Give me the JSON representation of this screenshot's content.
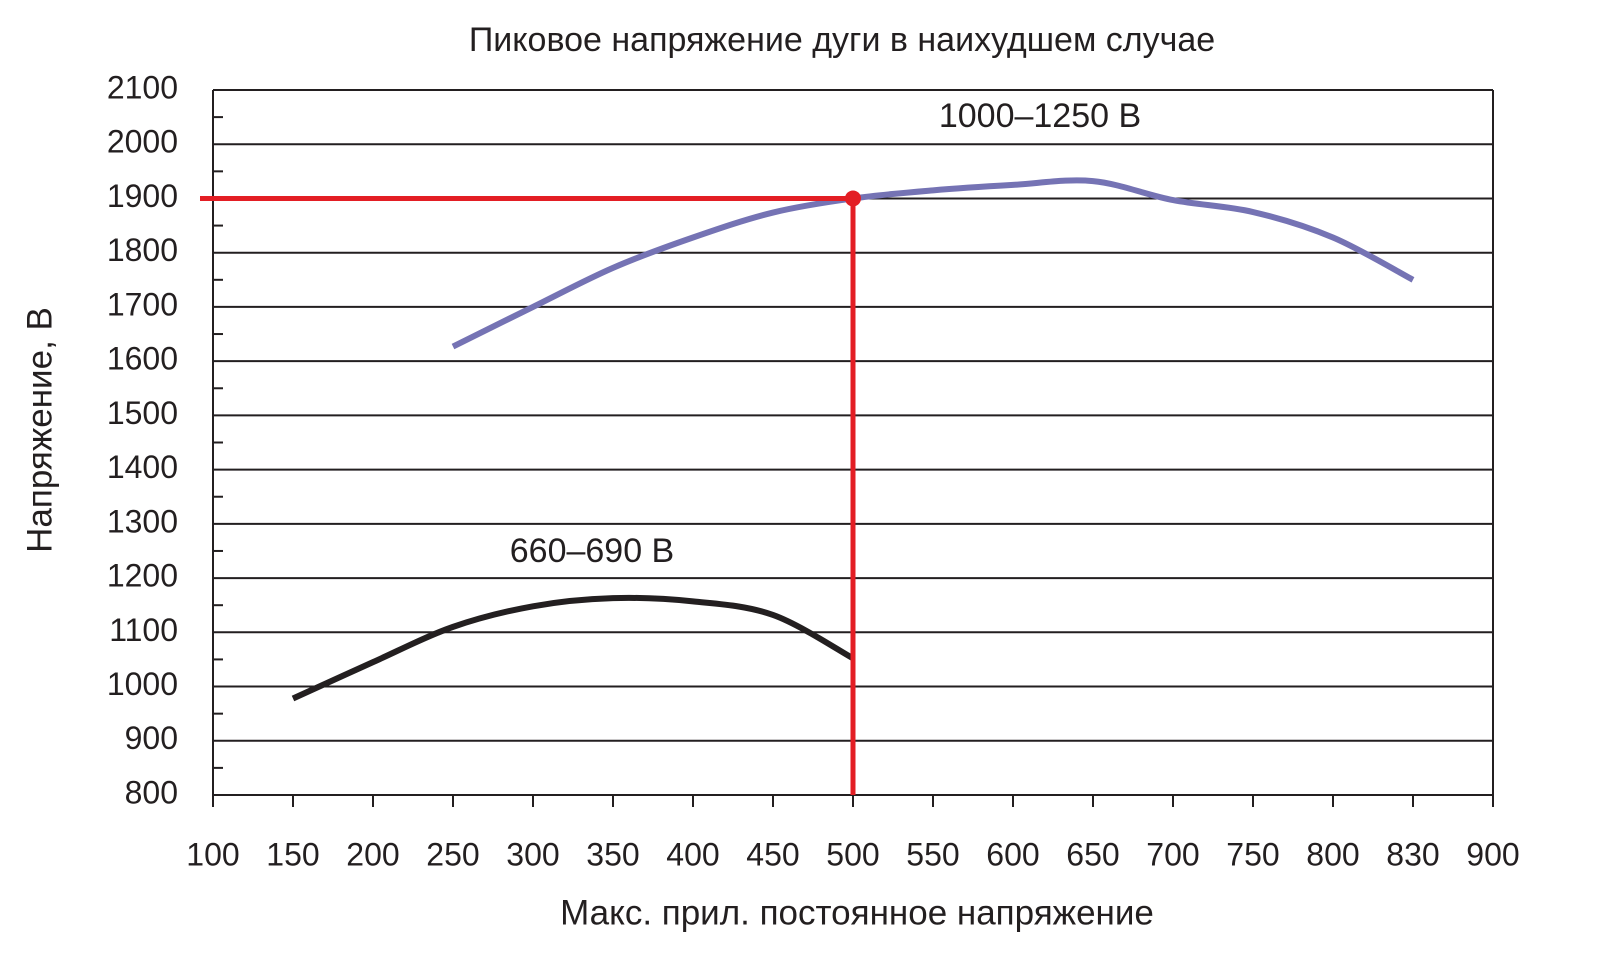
{
  "chart_data": {
    "type": "line",
    "title": "Пиковое напряжение дуги в наихудшем случае",
    "x_label": "Макс. прил. постоянное напряжение",
    "y_label": "Напряжение, В",
    "categories": [
      "100",
      "150",
      "200",
      "250",
      "300",
      "350",
      "400",
      "450",
      "500",
      "550",
      "600",
      "650",
      "700",
      "750",
      "800",
      "830",
      "900"
    ],
    "series": [
      {
        "name": "660–690 В",
        "color": "#231f20",
        "values": [
          null,
          978,
          1045,
          1110,
          1148,
          1163,
          1157,
          1132,
          1052,
          null,
          null,
          null,
          null,
          null,
          null,
          null,
          null
        ]
      },
      {
        "name": "1000–1250 В",
        "color": "#7573b4",
        "values": [
          null,
          null,
          null,
          1627,
          1700,
          1772,
          1828,
          1874,
          1900,
          1915,
          1925,
          1932,
          1897,
          1875,
          1828,
          1750,
          null
        ]
      }
    ],
    "reference_point": {
      "x": 500,
      "y": 1900,
      "color": "#e31e24"
    },
    "ylim": [
      800,
      2100
    ],
    "yticks": [
      800,
      900,
      1000,
      1100,
      1200,
      1300,
      1400,
      1500,
      1600,
      1700,
      1800,
      1900,
      2000,
      2100
    ],
    "grid": true
  }
}
